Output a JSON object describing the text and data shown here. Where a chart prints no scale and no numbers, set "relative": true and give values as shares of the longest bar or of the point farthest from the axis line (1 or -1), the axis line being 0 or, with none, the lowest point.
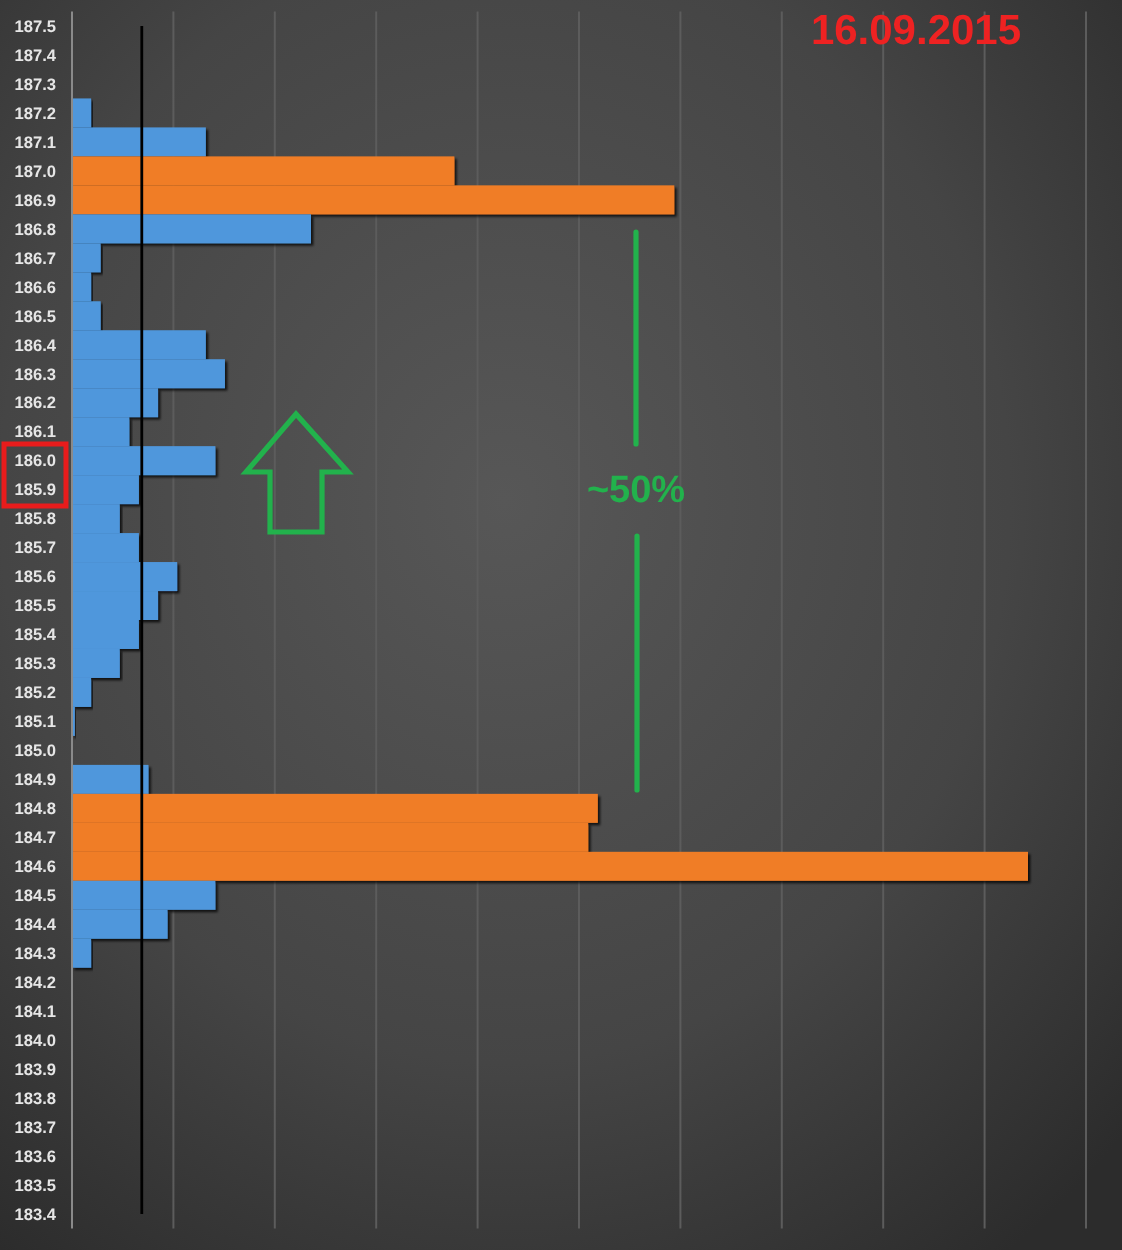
{
  "chart_data": {
    "type": "bar",
    "orientation": "horizontal",
    "relative": true,
    "title": "16.09.2015",
    "categories": [
      "187.5",
      "187.4",
      "187.3",
      "187.2",
      "187.1",
      "187.0",
      "186.9",
      "186.8",
      "186.7",
      "186.6",
      "186.5",
      "186.4",
      "186.3",
      "186.2",
      "186.1",
      "186.0",
      "185.9",
      "185.8",
      "185.7",
      "185.6",
      "185.5",
      "185.4",
      "185.3",
      "185.2",
      "185.1",
      "185.0",
      "184.9",
      "184.8",
      "184.7",
      "184.6",
      "184.5",
      "184.4",
      "184.3",
      "184.2",
      "184.1",
      "184.0",
      "183.9",
      "183.8",
      "183.7",
      "183.6",
      "183.5",
      "183.4"
    ],
    "values": [
      null,
      null,
      null,
      0.02,
      0.14,
      0.4,
      0.63,
      0.25,
      0.03,
      0.02,
      0.03,
      0.14,
      0.16,
      0.09,
      0.06,
      0.15,
      0.07,
      0.05,
      0.07,
      0.11,
      0.09,
      0.07,
      0.05,
      0.02,
      0.003,
      null,
      0.08,
      0.55,
      0.54,
      1,
      0.15,
      0.1,
      0.02,
      null,
      null,
      null,
      null,
      null,
      null,
      null,
      null,
      null
    ],
    "colors": [
      null,
      null,
      null,
      "#4f97dc",
      "#4f97dc",
      "#f07d28",
      "#f07d28",
      "#4f97dc",
      "#4f97dc",
      "#4f97dc",
      "#4f97dc",
      "#4f97dc",
      "#4f97dc",
      "#4f97dc",
      "#4f97dc",
      "#4f97dc",
      "#4f97dc",
      "#4f97dc",
      "#4f97dc",
      "#4f97dc",
      "#4f97dc",
      "#4f97dc",
      "#4f97dc",
      "#4f97dc",
      "#4f97dc",
      null,
      "#4f97dc",
      "#f07d28",
      "#f07d28",
      "#f07d28",
      "#4f97dc",
      "#4f97dc",
      "#4f97dc",
      null,
      null,
      null,
      null,
      null,
      null,
      null,
      null,
      null
    ],
    "grid": "x",
    "ref_lines": [
      {
        "axis": "x",
        "value": 0.073,
        "color": "#000000"
      }
    ],
    "annotations": [
      "~50%"
    ]
  }
}
